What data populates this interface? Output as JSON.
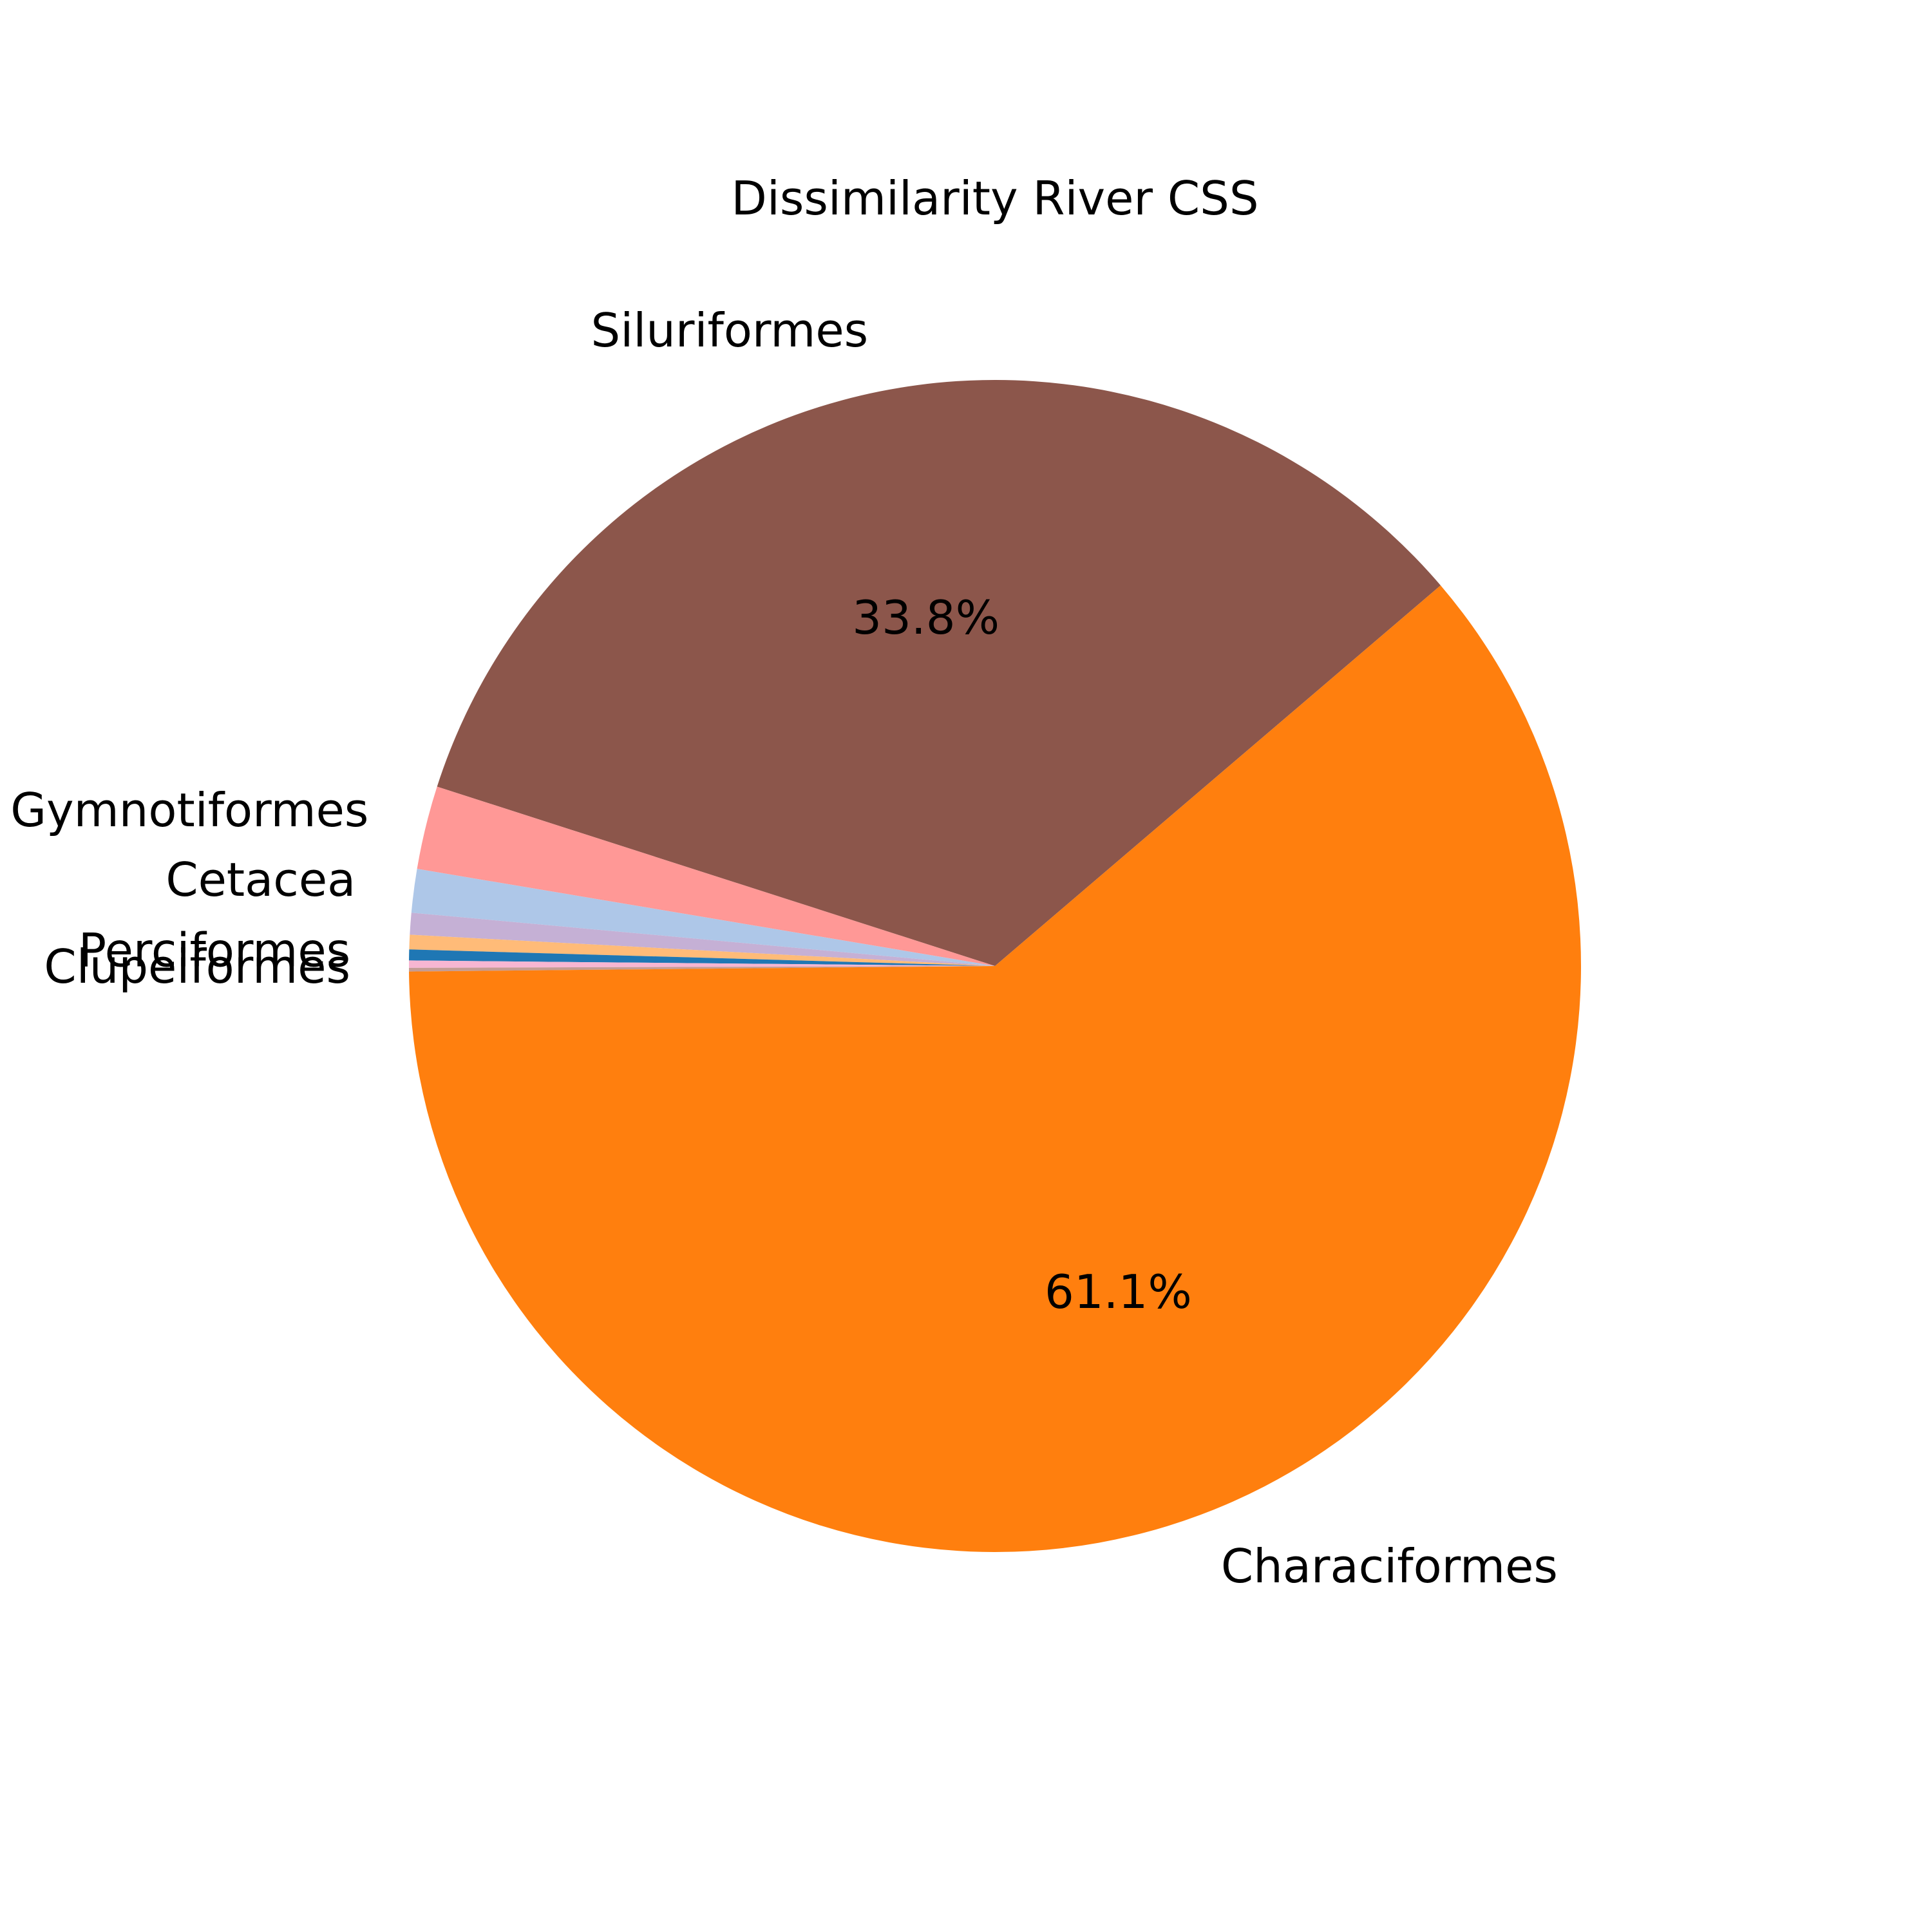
{
  "chart_data": {
    "type": "pie",
    "title": "Dissimilarity River CSS",
    "start_angle_deg": 0,
    "direction": "counterclockwise",
    "slices": [
      {
        "label": "Siluriformes",
        "value": 33.8,
        "pct_label": "33.8%",
        "color": "#8c564b"
      },
      {
        "label": "Gymnotiformes",
        "value": 2.3,
        "pct_label": "",
        "color": "#ff9896"
      },
      {
        "label": "Cetacea",
        "value": 1.2,
        "pct_label": "",
        "color": "#aec7e8"
      },
      {
        "label": "",
        "value": 0.6,
        "pct_label": "",
        "color": "#c5b0d5"
      },
      {
        "label": "",
        "value": 0.4,
        "pct_label": "",
        "color": "#ffbb78"
      },
      {
        "label": "Perciformes",
        "value": 0.3,
        "pct_label": "",
        "color": "#1f77b4"
      },
      {
        "label": "",
        "value": 0.2,
        "pct_label": "",
        "color": "#f7b6d2"
      },
      {
        "label": "Clupeiformes",
        "value": 0.1,
        "pct_label": "",
        "color": "#c49c94"
      },
      {
        "label": "Characiformes",
        "value": 61.1,
        "pct_label": "61.1%",
        "color": "#ff7f0e"
      }
    ]
  }
}
